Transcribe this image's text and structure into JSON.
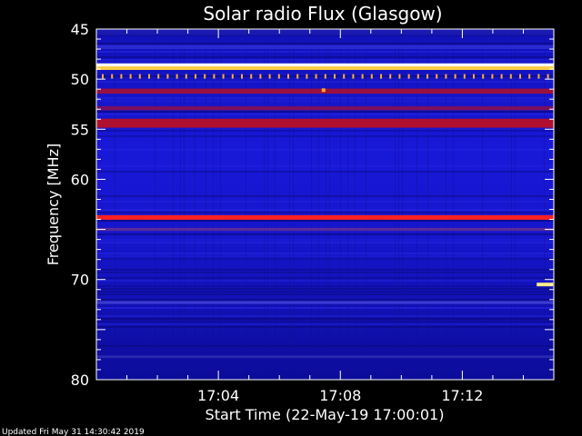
{
  "chart_data": {
    "type": "heatmap",
    "title": "Solar radio Flux (Glasgow)",
    "ylabel": "Frequency [MHz]",
    "xlabel": "Start Time (22-May-19 17:00:01)",
    "ylim": [
      45,
      80
    ],
    "y_inverted": true,
    "yticks": [
      45,
      50,
      55,
      60,
      70,
      80
    ],
    "xticks": [
      "17:04",
      "17:08",
      "17:12"
    ],
    "xticks_minutes": [
      4,
      8,
      12
    ],
    "xlim_minutes": [
      0,
      15
    ],
    "bands": [
      {
        "freq": 45.3,
        "width": 0.6,
        "color": "#1a1ab0",
        "intensity": "low"
      },
      {
        "freq": 46.8,
        "width": 0.4,
        "color": "#2a2ad0",
        "intensity": "low"
      },
      {
        "freq": 48.6,
        "width": 0.35,
        "color": "#ffffff",
        "intensity": "very high"
      },
      {
        "freq": 48.9,
        "width": 0.35,
        "color": "#ffcc44",
        "intensity": "very high"
      },
      {
        "freq": 51.2,
        "width": 0.5,
        "color": "#9a1040",
        "intensity": "medium"
      },
      {
        "freq": 52.9,
        "width": 0.4,
        "color": "#7a1060",
        "intensity": "medium"
      },
      {
        "freq": 54.4,
        "width": 0.9,
        "color": "#b01030",
        "intensity": "high"
      },
      {
        "freq": 63.8,
        "width": 0.45,
        "color": "#ff2020",
        "intensity": "high"
      },
      {
        "freq": 65.0,
        "width": 0.3,
        "color": "#5a2a9a",
        "intensity": "medium"
      },
      {
        "freq": 72.3,
        "width": 0.3,
        "color": "#3a3ad0",
        "intensity": "low"
      },
      {
        "freq": 77.7,
        "width": 0.25,
        "color": "#2a2ab0",
        "intensity": "low"
      }
    ],
    "bursts": [
      {
        "time_minutes": 7.45,
        "freq": 51.1,
        "color": "#ffaa22"
      },
      {
        "time_minutes": 14.5,
        "freq": 70.5,
        "color": "#ffee88"
      }
    ],
    "colors": {
      "background_band": "#1414c8",
      "deep_band": "#0a0a8a",
      "axis": "#ffffff"
    }
  },
  "footer": {
    "updated": "Updated Fri May 31 14:30:42 2019"
  }
}
